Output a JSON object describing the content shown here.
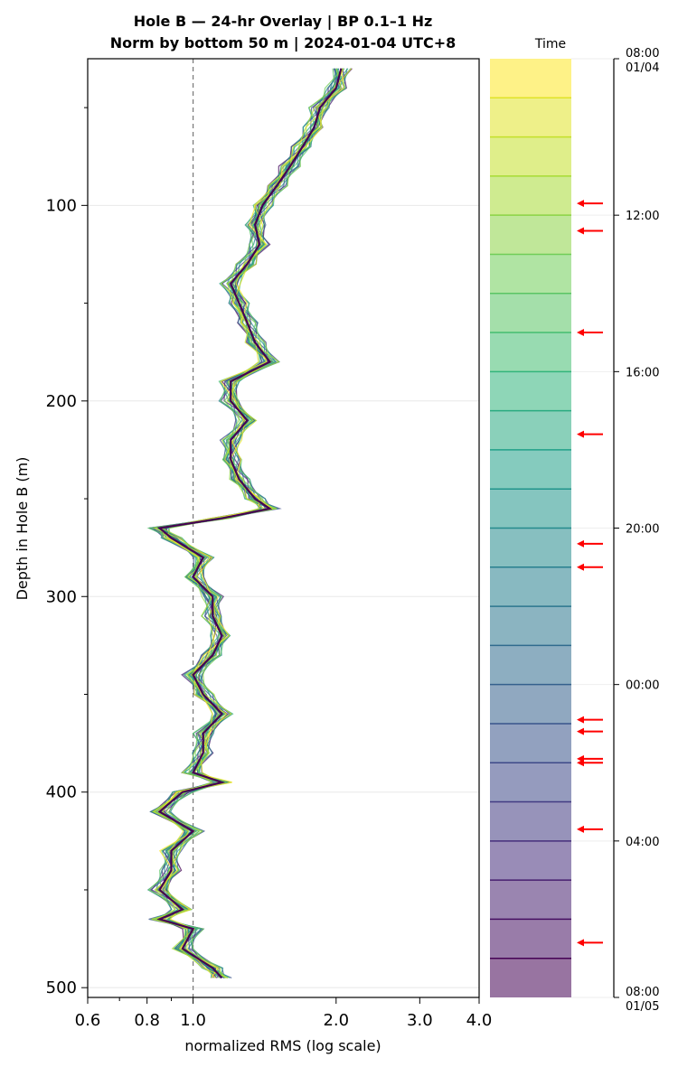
{
  "chart_data": {
    "type": "line",
    "title": "Hole B — 24-hr Overlay  |  BP 0.1–1 Hz",
    "subtitle": "Norm by bottom 50 m  |  2024-01-04 UTC+8",
    "xlabel": "normalized RMS  (log scale)",
    "ylabel": "Depth in Hole B (m)",
    "x_scale": "log",
    "xlim": [
      0.6,
      4.0
    ],
    "ylim": [
      505,
      25
    ],
    "x_ticks": [
      "0.6",
      "0.8",
      "1.0",
      "2.0",
      "3.0",
      "4.0"
    ],
    "y_ticks": [
      "100",
      "200",
      "300",
      "400",
      "500"
    ],
    "reference_line_x": 1.0,
    "grid": true,
    "depth": [
      30,
      40,
      50,
      60,
      70,
      80,
      90,
      100,
      110,
      120,
      130,
      140,
      150,
      160,
      170,
      180,
      190,
      200,
      210,
      220,
      230,
      240,
      250,
      255,
      260,
      265,
      270,
      280,
      290,
      300,
      310,
      320,
      330,
      340,
      350,
      360,
      370,
      380,
      390,
      395,
      400,
      410,
      420,
      430,
      440,
      450,
      460,
      465,
      470,
      480,
      490,
      495
    ],
    "reference_profile": [
      2.05,
      2.0,
      1.85,
      1.8,
      1.7,
      1.6,
      1.5,
      1.4,
      1.35,
      1.38,
      1.3,
      1.2,
      1.25,
      1.3,
      1.35,
      1.45,
      1.2,
      1.2,
      1.3,
      1.2,
      1.2,
      1.25,
      1.35,
      1.45,
      1.15,
      0.85,
      0.9,
      1.05,
      1.0,
      1.1,
      1.1,
      1.15,
      1.1,
      1.0,
      1.05,
      1.15,
      1.05,
      1.05,
      1.0,
      1.15,
      0.95,
      0.85,
      1.0,
      0.9,
      0.9,
      0.85,
      0.95,
      0.85,
      1.0,
      0.95,
      1.1,
      1.15
    ],
    "series_count": 24,
    "colorbar": {
      "label": "Time",
      "colormap": "viridis",
      "ticks": [
        "08:00\n01/04",
        "12:00",
        "16:00",
        "20:00",
        "00:00",
        "04:00",
        "08:00\n01/05"
      ],
      "hours": [
        8,
        12,
        16,
        20,
        24,
        28,
        32
      ]
    },
    "event_arrows_hours": [
      11.7,
      12.4,
      15.0,
      17.6,
      20.4,
      21.0,
      24.9,
      25.2,
      25.9,
      26.0,
      27.7,
      30.6
    ],
    "colors": {
      "arrow": "#ff0000",
      "reference_line": "#777777",
      "grid": "#e8e8e8"
    }
  }
}
